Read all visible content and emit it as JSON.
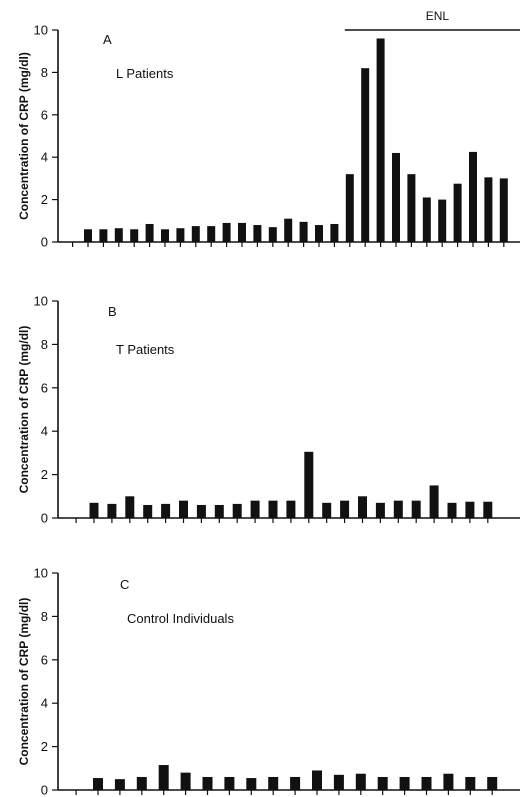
{
  "chart_data": [
    {
      "type": "bar",
      "panel_letter": "A",
      "group_label": "L   Patients",
      "ylabel": "Concentration of CRP (mg/dl)",
      "xlabel": "",
      "ylim": [
        0,
        10
      ],
      "yticks": [
        0,
        2,
        4,
        6,
        8,
        10
      ],
      "grid": false,
      "values": [
        0.6,
        0.6,
        0.65,
        0.6,
        0.85,
        0.6,
        0.65,
        0.75,
        0.75,
        0.9,
        0.9,
        0.8,
        0.7,
        1.1,
        0.95,
        0.8,
        0.85,
        3.2,
        8.2,
        9.6,
        4.2,
        3.2,
        2.1,
        2.0,
        2.75,
        4.25,
        3.05,
        3.0
      ],
      "bracket": {
        "label": "ENL",
        "start_index": 17,
        "end_index": 27
      }
    },
    {
      "type": "bar",
      "panel_letter": "B",
      "group_label": "T   Patients",
      "ylabel": "Concentration of CRP (mg/dl)",
      "xlabel": "",
      "ylim": [
        0,
        10
      ],
      "yticks": [
        0,
        2,
        4,
        6,
        8,
        10
      ],
      "grid": false,
      "values": [
        0.7,
        0.65,
        1.0,
        0.6,
        0.65,
        0.8,
        0.6,
        0.6,
        0.65,
        0.8,
        0.8,
        0.8,
        3.05,
        0.7,
        0.8,
        1.0,
        0.7,
        0.8,
        0.8,
        1.5,
        0.7,
        0.75,
        0.75
      ]
    },
    {
      "type": "bar",
      "panel_letter": "C",
      "group_label": "Control Individuals",
      "ylabel": "Concentration of CRP (mg/dl)",
      "xlabel": "",
      "ylim": [
        0,
        10
      ],
      "yticks": [
        0,
        2,
        4,
        6,
        8,
        10
      ],
      "grid": false,
      "values": [
        0.55,
        0.5,
        0.6,
        1.15,
        0.8,
        0.6,
        0.6,
        0.55,
        0.6,
        0.6,
        0.9,
        0.7,
        0.75,
        0.6,
        0.6,
        0.6,
        0.75,
        0.6,
        0.6
      ]
    }
  ]
}
